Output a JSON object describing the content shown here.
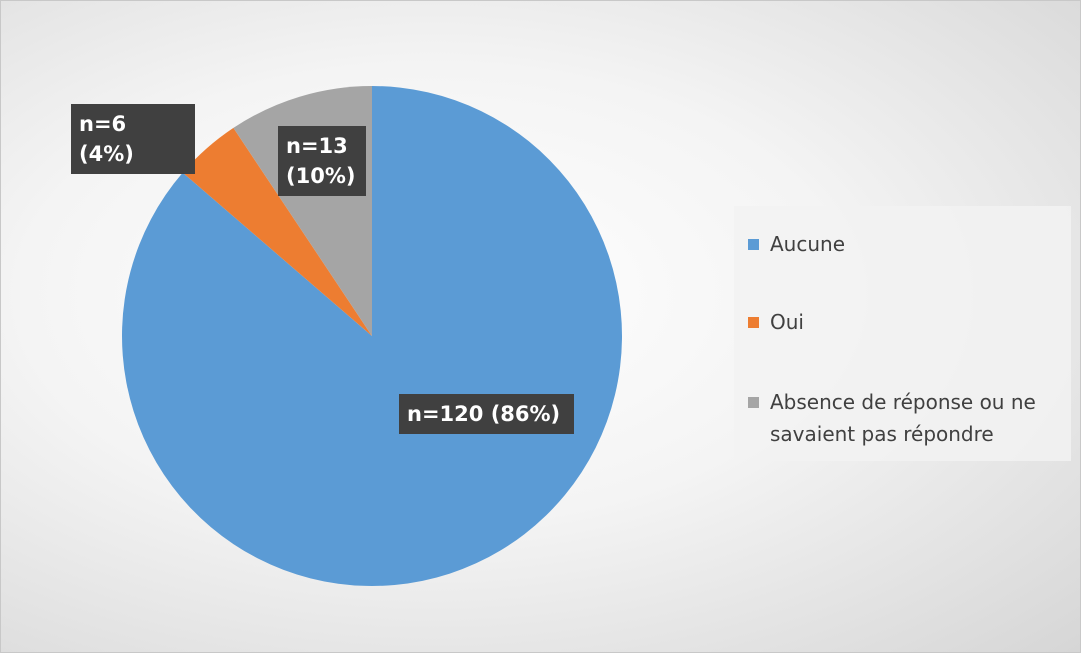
{
  "chart_data": {
    "type": "pie",
    "categories": [
      "Aucune",
      "Oui",
      "Absence de réponse ou ne savaient pas répondre"
    ],
    "values": [
      120,
      6,
      13
    ],
    "value_labels": [
      "n=120 (86%)",
      "n=6 (4%)",
      "n=13 (10%)"
    ],
    "colors": [
      "#5b9bd5",
      "#ed7d31",
      "#a5a5a5"
    ],
    "legend": "right"
  }
}
